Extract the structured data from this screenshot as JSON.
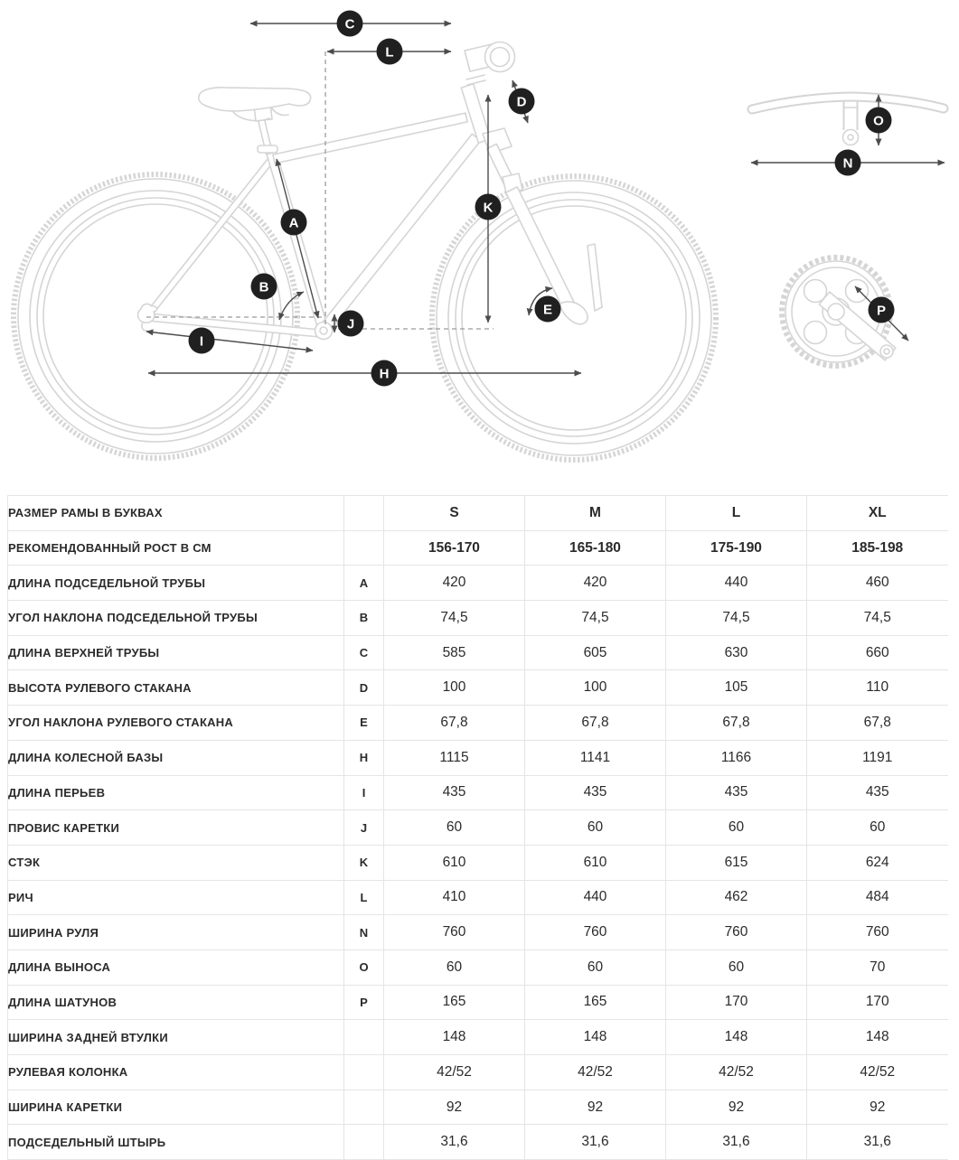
{
  "colors": {
    "marker_bg": "#202020",
    "marker_text": "#ffffff",
    "arrow": "#4c4c4c",
    "line_art": "#d5d5d5",
    "dashed": "#9b9b9b",
    "table_border": "#e5e5e5",
    "text": "#2b2b2b",
    "background": "#ffffff"
  },
  "diagram": {
    "description": "bike-geometry-line-drawing",
    "markers": {
      "a": "A",
      "b": "B",
      "c": "C",
      "d": "D",
      "e": "E",
      "h": "H",
      "i": "I",
      "j": "J",
      "k": "K",
      "l": "L",
      "n": "N",
      "o": "O",
      "p": "P"
    }
  },
  "table": {
    "rows": [
      {
        "label": "РАЗМЕР РАМЫ В БУКВАХ",
        "letter": "",
        "bold": true,
        "values": [
          "S",
          "M",
          "L",
          "XL"
        ]
      },
      {
        "label": "РЕКОМЕНДОВАННЫЙ РОСТ В СМ",
        "letter": "",
        "bold": true,
        "values": [
          "156-170",
          "165-180",
          "175-190",
          "185-198"
        ]
      },
      {
        "label": "ДЛИНА ПОДСЕДЕЛЬНОЙ ТРУБЫ",
        "letter": "A",
        "bold": false,
        "values": [
          "420",
          "420",
          "440",
          "460"
        ]
      },
      {
        "label": "УГОЛ НАКЛОНА ПОДСЕДЕЛЬНОЙ ТРУБЫ",
        "letter": "B",
        "bold": false,
        "values": [
          "74,5",
          "74,5",
          "74,5",
          "74,5"
        ]
      },
      {
        "label": "ДЛИНА ВЕРХНЕЙ ТРУБЫ",
        "letter": "C",
        "bold": false,
        "values": [
          "585",
          "605",
          "630",
          "660"
        ]
      },
      {
        "label": "ВЫСОТА РУЛЕВОГО СТАКАНА",
        "letter": "D",
        "bold": false,
        "values": [
          "100",
          "100",
          "105",
          "110"
        ]
      },
      {
        "label": "УГОЛ НАКЛОНА РУЛЕВОГО СТАКАНА",
        "letter": "E",
        "bold": false,
        "values": [
          "67,8",
          "67,8",
          "67,8",
          "67,8"
        ]
      },
      {
        "label": "ДЛИНА КОЛЕСНОЙ БАЗЫ",
        "letter": "H",
        "bold": false,
        "values": [
          "1115",
          "1141",
          "1166",
          "1191"
        ]
      },
      {
        "label": "ДЛИНА ПЕРЬЕВ",
        "letter": "I",
        "bold": false,
        "values": [
          "435",
          "435",
          "435",
          "435"
        ]
      },
      {
        "label": "ПРОВИС КАРЕТКИ",
        "letter": "J",
        "bold": false,
        "values": [
          "60",
          "60",
          "60",
          "60"
        ]
      },
      {
        "label": "СТЭК",
        "letter": "K",
        "bold": false,
        "values": [
          "610",
          "610",
          "615",
          "624"
        ]
      },
      {
        "label": "РИЧ",
        "letter": "L",
        "bold": false,
        "values": [
          "410",
          "440",
          "462",
          "484"
        ]
      },
      {
        "label": "ШИРИНА РУЛЯ",
        "letter": "N",
        "bold": false,
        "values": [
          "760",
          "760",
          "760",
          "760"
        ]
      },
      {
        "label": "ДЛИНА ВЫНОСА",
        "letter": "O",
        "bold": false,
        "values": [
          "60",
          "60",
          "60",
          "70"
        ]
      },
      {
        "label": "ДЛИНА ШАТУНОВ",
        "letter": "P",
        "bold": false,
        "values": [
          "165",
          "165",
          "170",
          "170"
        ]
      },
      {
        "label": "ШИРИНА ЗАДНЕЙ ВТУЛКИ",
        "letter": "",
        "bold": false,
        "values": [
          "148",
          "148",
          "148",
          "148"
        ]
      },
      {
        "label": "РУЛЕВАЯ КОЛОНКА",
        "letter": "",
        "bold": false,
        "values": [
          "42/52",
          "42/52",
          "42/52",
          "42/52"
        ]
      },
      {
        "label": "ШИРИНА КАРЕТКИ",
        "letter": "",
        "bold": false,
        "values": [
          "92",
          "92",
          "92",
          "92"
        ]
      },
      {
        "label": "ПОДСЕДЕЛЬНЫЙ ШТЫРЬ",
        "letter": "",
        "bold": false,
        "values": [
          "31,6",
          "31,6",
          "31,6",
          "31,6"
        ]
      }
    ]
  }
}
